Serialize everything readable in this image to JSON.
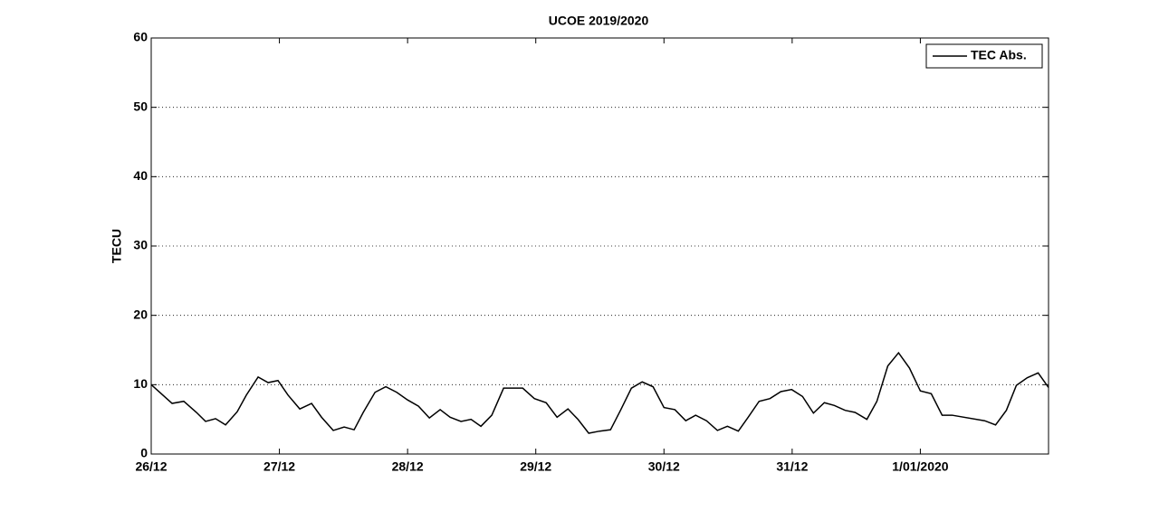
{
  "chart_data": {
    "type": "line",
    "title": "UCOE 2019/2020",
    "y_label": "TECU",
    "x": [
      0,
      0.163,
      0.254,
      0.353,
      0.424,
      0.502,
      0.58,
      0.671,
      0.742,
      0.834,
      0.912,
      0.989,
      1.067,
      1.159,
      1.251,
      1.329,
      1.42,
      1.505,
      1.583,
      1.654,
      1.746,
      1.83,
      1.915,
      2.0,
      2.085,
      2.17,
      2.254,
      2.332,
      2.417,
      2.495,
      2.572,
      2.657,
      2.749,
      2.898,
      2.989,
      3.081,
      3.166,
      3.251,
      3.329,
      3.413,
      3.498,
      3.583,
      3.661,
      3.746,
      3.83,
      3.915,
      4.0,
      4.085,
      4.17,
      4.247,
      4.332,
      4.417,
      4.495,
      4.58,
      4.657,
      4.742,
      4.827,
      4.912,
      4.996,
      5.081,
      5.166,
      5.251,
      5.329,
      5.413,
      5.491,
      5.583,
      5.661,
      5.746,
      5.83,
      5.915,
      6.0,
      6.085,
      6.17,
      6.247,
      6.502,
      6.587,
      6.671,
      6.749,
      6.834,
      6.919,
      7.0
    ],
    "series": [
      {
        "name": "TEC Abs.",
        "color": "#000000",
        "values": [
          10,
          7.3,
          7.6,
          6,
          4.7,
          5.1,
          4.2,
          6.1,
          8.5,
          11.1,
          10.3,
          10.6,
          8.5,
          6.5,
          7.3,
          5.3,
          3.4,
          3.9,
          3.5,
          6.0,
          8.9,
          9.7,
          8.9,
          7.8,
          6.9,
          5.2,
          6.4,
          5.3,
          4.7,
          5.0,
          4.0,
          5.6,
          9.5,
          9.5,
          8.0,
          7.4,
          5.3,
          6.5,
          5.0,
          3.0,
          3.3,
          3.5,
          6.3,
          9.5,
          10.4,
          9.7,
          6.7,
          6.4,
          4.8,
          5.6,
          4.8,
          3.4,
          4.0,
          3.3,
          5.3,
          7.6,
          8.0,
          9.0,
          9.3,
          8.3,
          5.9,
          7.4,
          7.0,
          6.3,
          6.0,
          5.0,
          7.6,
          12.7,
          14.6,
          12.4,
          9.1,
          8.7,
          5.6,
          5.6,
          4.8,
          4.2,
          6.3,
          9.9,
          11.0,
          11.7,
          9.6
        ]
      }
    ],
    "xlim": [
      0,
      7
    ],
    "xticks": [
      {
        "value": 0,
        "label": "26/12"
      },
      {
        "value": 1,
        "label": "27/12"
      },
      {
        "value": 2,
        "label": "28/12"
      },
      {
        "value": 3,
        "label": "29/12"
      },
      {
        "value": 4,
        "label": "30/12"
      },
      {
        "value": 5,
        "label": "31/12"
      },
      {
        "value": 6,
        "label": "1/01/2020"
      }
    ],
    "ylim": [
      0,
      60
    ],
    "yticks": [
      0,
      10,
      20,
      30,
      40,
      50,
      60
    ],
    "grid": true,
    "legend": "upper right"
  }
}
